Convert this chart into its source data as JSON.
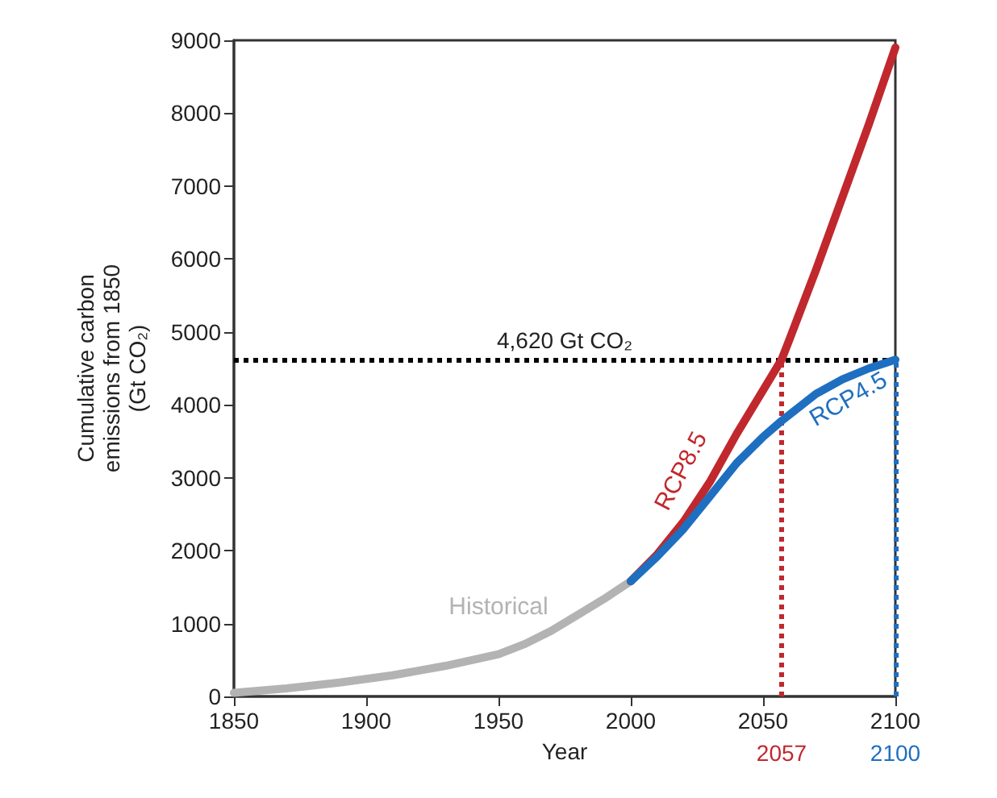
{
  "chart_data": {
    "type": "line",
    "xlabel": "Year",
    "ylabel": "Cumulative carbon\nemissions from 1850\n(Gt CO₂)",
    "series": [
      {
        "name": "Historical",
        "color": "#b3b3b3",
        "x": [
          1850,
          1870,
          1890,
          1910,
          1930,
          1950,
          1960,
          1970,
          1980,
          1990,
          2000
        ],
        "values": [
          50,
          110,
          190,
          290,
          420,
          580,
          720,
          900,
          1120,
          1340,
          1580
        ]
      },
      {
        "name": "RCP8.5",
        "color": "#c0282d",
        "x": [
          2000,
          2010,
          2020,
          2030,
          2040,
          2050,
          2057,
          2060,
          2070,
          2080,
          2090,
          2100
        ],
        "values": [
          1580,
          1950,
          2400,
          2950,
          3600,
          4200,
          4620,
          4900,
          5850,
          6850,
          7850,
          8900
        ]
      },
      {
        "name": "RCP4.5",
        "color": "#1f6fc0",
        "x": [
          2000,
          2010,
          2020,
          2030,
          2040,
          2050,
          2057,
          2070,
          2080,
          2090,
          2100
        ],
        "values": [
          1580,
          1920,
          2300,
          2750,
          3200,
          3560,
          3780,
          4150,
          4350,
          4500,
          4620
        ]
      }
    ],
    "xlim": [
      1850,
      2100
    ],
    "xticks": [
      1850,
      1900,
      1950,
      2000,
      2050,
      2100
    ],
    "ylim": [
      0,
      9000
    ],
    "yticks": [
      0,
      1000,
      2000,
      3000,
      4000,
      5000,
      6000,
      7000,
      8000,
      9000
    ],
    "ref_lines": [
      {
        "axis": "y",
        "value": 4620,
        "label": "4,620 Gt CO₂",
        "color": "#000000",
        "line_style": "dotted"
      },
      {
        "axis": "x",
        "value": 2057,
        "label": "2057",
        "color": "#c0282d",
        "line_style": "dotted"
      },
      {
        "axis": "x",
        "value": 2100,
        "label": "2100",
        "color": "#1f6fc0",
        "line_style": "dotted"
      }
    ],
    "grid": false,
    "legend": false,
    "marker": "none",
    "line_style": "solid"
  }
}
